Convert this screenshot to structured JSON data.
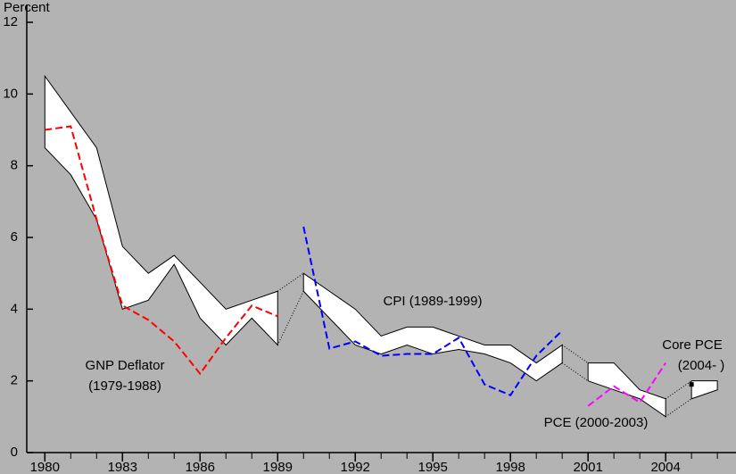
{
  "chart_data": {
    "type": "band-line",
    "y_label": "Percent",
    "xlim": [
      1979.3,
      2006.72
    ],
    "ylim": [
      0,
      12
    ],
    "xticks": [
      1980,
      1983,
      1986,
      1989,
      1992,
      1995,
      1998,
      2001,
      2004
    ],
    "xminorticks": [
      1980,
      1981,
      1982,
      1983,
      1984,
      1985,
      1986,
      1987,
      1988,
      1989,
      1990,
      1991,
      1992,
      1993,
      1994,
      1995,
      1996,
      1997,
      1998,
      1999,
      2000,
      2001,
      2002,
      2003,
      2004,
      2005,
      2006
    ],
    "yticks": [
      0,
      2,
      4,
      6,
      8,
      10,
      12
    ],
    "band_color": "#ffffff",
    "bands": [
      {
        "x": [
          1980,
          1981,
          1982,
          1983,
          1984,
          1985,
          1986,
          1987,
          1988,
          1989
        ],
        "upper": [
          10.5,
          9.5,
          8.5,
          5.75,
          5.0,
          5.5,
          4.75,
          4.0,
          4.25,
          4.5
        ],
        "lower": [
          8.5,
          7.75,
          6.5,
          4.0,
          4.25,
          5.25,
          3.75,
          3.0,
          3.75,
          3.0
        ]
      },
      {
        "x": [
          1990,
          1991,
          1992,
          1993,
          1994,
          1995,
          1996,
          1997,
          1998,
          1999,
          2000
        ],
        "upper": [
          5.0,
          4.5,
          4.0,
          3.25,
          3.5,
          3.5,
          3.25,
          3.0,
          3.0,
          2.5,
          3.0
        ],
        "lower": [
          4.5,
          3.75,
          3.0,
          2.75,
          3.0,
          2.75,
          2.875,
          2.75,
          2.5,
          2.0,
          2.5
        ]
      },
      {
        "x": [
          2001,
          2002,
          2003,
          2004
        ],
        "upper": [
          2.5,
          2.5,
          1.75,
          1.5
        ],
        "lower": [
          2.0,
          1.75,
          1.5,
          1.0
        ]
      },
      {
        "x": [
          2005,
          2006
        ],
        "upper": [
          2.0,
          2.0
        ],
        "lower": [
          1.5,
          1.75
        ]
      }
    ],
    "series": [
      {
        "label_lines": [
          "GNP Deflator",
          "(1979-1988)"
        ],
        "color": "#ff0000",
        "x": [
          1980,
          1981,
          1982,
          1983,
          1984,
          1985,
          1986,
          1987,
          1988,
          1989
        ],
        "values": [
          9.0,
          9.1,
          6.5,
          4.1,
          3.7,
          3.1,
          2.2,
          3.2,
          4.1,
          3.8
        ]
      },
      {
        "label_lines": [
          "CPI (1989-1999)"
        ],
        "color": "#0000ff",
        "x": [
          1990,
          1991,
          1992,
          1993,
          1994,
          1995,
          1996,
          1997,
          1998,
          1999,
          2000
        ],
        "values": [
          6.3,
          2.9,
          3.1,
          2.7,
          2.75,
          2.75,
          3.2,
          1.9,
          1.6,
          2.7,
          3.4
        ]
      },
      {
        "label_lines": [
          "PCE (2000-2003)"
        ],
        "color": "#ff00ff",
        "x": [
          2001,
          2002,
          2003,
          2004
        ],
        "values": [
          1.3,
          1.85,
          1.4,
          2.5
        ]
      },
      {
        "label_lines": [
          "Core PCE",
          "(2004- )"
        ],
        "color": "#000000",
        "x": [
          2005
        ],
        "values": [
          1.9
        ]
      }
    ]
  }
}
